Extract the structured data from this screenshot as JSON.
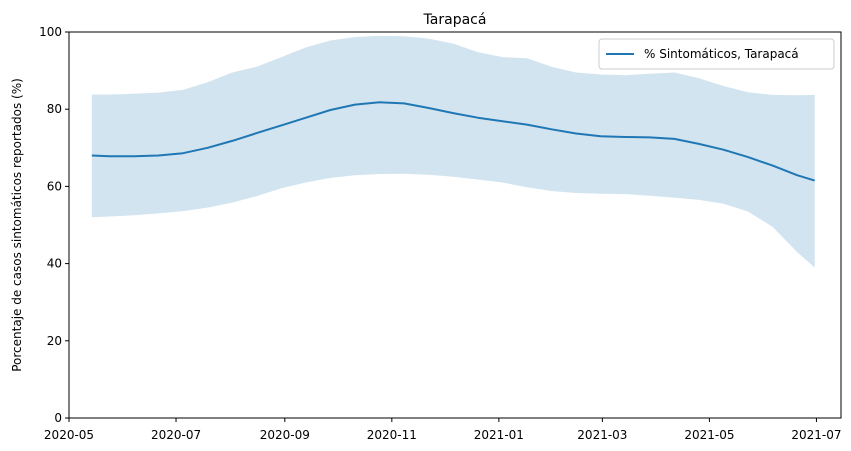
{
  "chart_data": {
    "type": "line",
    "title": "Tarapacá",
    "xlabel": "",
    "ylabel": "Porcentaje de casos sintomáticos reportados (%)",
    "ylim": [
      0,
      100
    ],
    "xlim": [
      "2020-05-01",
      "2021-07-15"
    ],
    "grid": false,
    "legend_position": "top-right",
    "x_tick_labels": [
      "2020-05",
      "2020-07",
      "2020-09",
      "2020-11",
      "2021-01",
      "2021-03",
      "2021-05",
      "2021-07"
    ],
    "x_ticks": [
      "2020-05-01",
      "2020-07-01",
      "2020-09-01",
      "2020-11-01",
      "2021-01-01",
      "2021-03-01",
      "2021-05-01",
      "2021-07-01"
    ],
    "y_tick_labels": [
      "0",
      "20",
      "40",
      "60",
      "80",
      "100"
    ],
    "y_ticks": [
      0,
      20,
      40,
      60,
      80,
      100
    ],
    "series": [
      {
        "name": "% Sintomáticos, Tarapacá",
        "color": "#1f77b4",
        "band_color": "#1f77b4",
        "band_opacity": 0.2,
        "x": [
          "2020-05-14",
          "2020-05-24",
          "2020-06-07",
          "2020-06-21",
          "2020-07-05",
          "2020-07-19",
          "2020-08-02",
          "2020-08-16",
          "2020-08-30",
          "2020-09-13",
          "2020-09-27",
          "2020-10-11",
          "2020-10-25",
          "2020-11-08",
          "2020-11-22",
          "2020-12-06",
          "2020-12-20",
          "2021-01-03",
          "2021-01-17",
          "2021-01-31",
          "2021-02-14",
          "2021-02-28",
          "2021-03-14",
          "2021-03-28",
          "2021-04-11",
          "2021-04-25",
          "2021-05-09",
          "2021-05-23",
          "2021-06-06",
          "2021-06-20",
          "2021-06-30"
        ],
        "values": [
          68.0,
          67.8,
          67.8,
          68.0,
          68.6,
          70.0,
          71.8,
          73.8,
          75.8,
          77.8,
          79.8,
          81.2,
          81.8,
          81.5,
          80.3,
          79.0,
          77.8,
          76.9,
          76.0,
          74.8,
          73.7,
          73.0,
          72.8,
          72.7,
          72.3,
          71.0,
          69.5,
          67.6,
          65.4,
          62.9,
          61.5
        ],
        "upper": [
          83.8,
          83.8,
          84.0,
          84.3,
          85.0,
          87.0,
          89.5,
          91.0,
          93.5,
          96.0,
          97.8,
          98.7,
          99.0,
          98.9,
          98.3,
          97.0,
          94.8,
          93.5,
          93.2,
          91.0,
          89.5,
          89.0,
          88.8,
          89.2,
          89.5,
          88.0,
          86.0,
          84.4,
          83.7,
          83.6,
          83.7
        ],
        "lower": [
          52.0,
          52.2,
          52.5,
          53.0,
          53.6,
          54.5,
          55.8,
          57.5,
          59.5,
          61.0,
          62.2,
          62.9,
          63.2,
          63.3,
          63.0,
          62.5,
          61.8,
          61.0,
          59.8,
          58.8,
          58.3,
          58.1,
          58.0,
          57.6,
          57.1,
          56.5,
          55.5,
          53.5,
          49.5,
          43.0,
          39.0
        ]
      }
    ]
  }
}
